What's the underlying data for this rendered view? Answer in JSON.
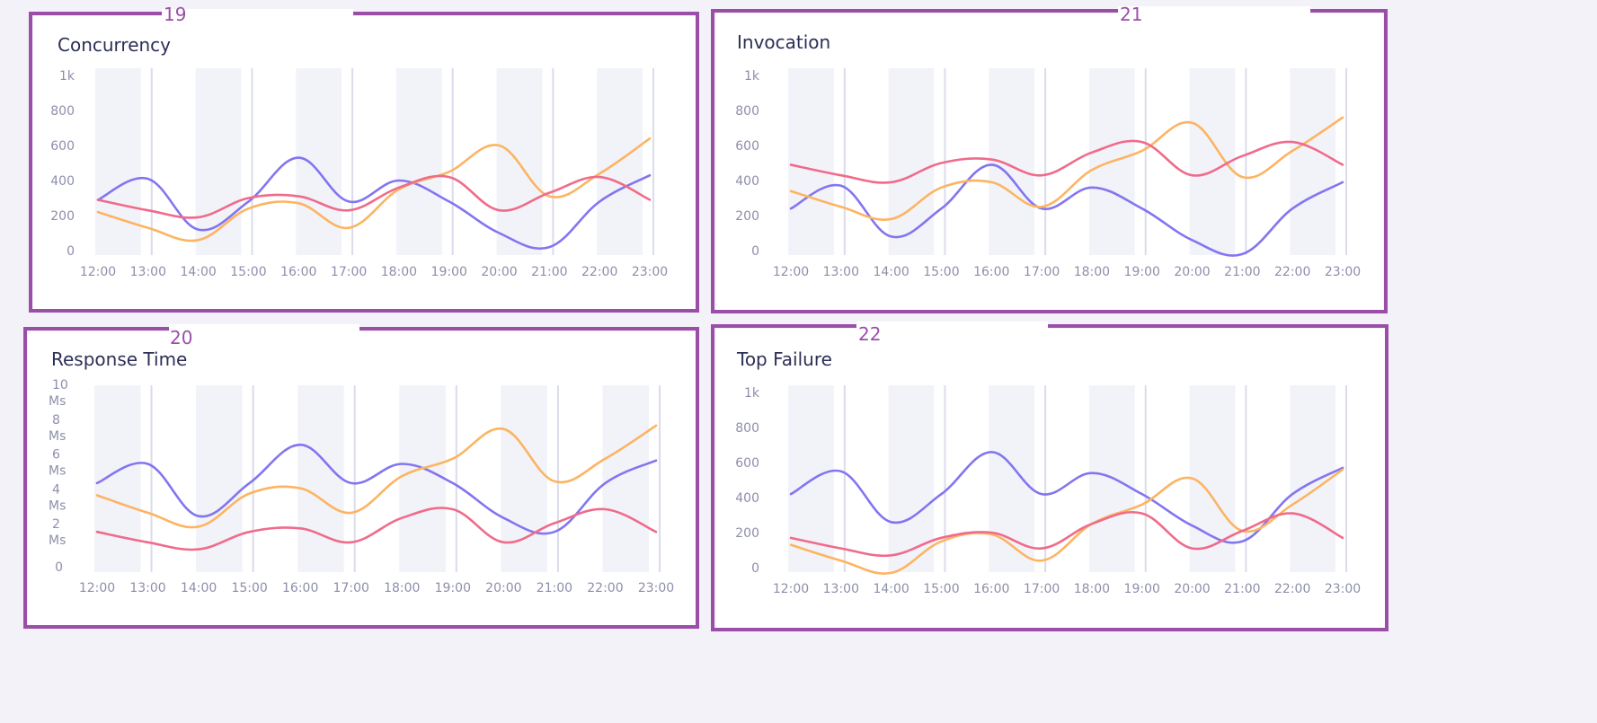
{
  "colors": {
    "purple": "#8375f0",
    "orange": "#fcb462",
    "pink": "#f06b8a",
    "band": "#f2f3f9",
    "frame": "#9b4ea8"
  },
  "x_ticks": [
    "12:00",
    "13:00",
    "14:00",
    "15:00",
    "16:00",
    "17:00",
    "18:00",
    "19:00",
    "20:00",
    "21:00",
    "22:00",
    "23:00"
  ],
  "panels": [
    {
      "id": "concurrency",
      "title": "Concurrency",
      "frame_label": "19",
      "y_ticks": [
        "0",
        "200",
        "400",
        "600",
        "800",
        "1k"
      ]
    },
    {
      "id": "invocation",
      "title": "Invocation",
      "frame_label": "21",
      "y_ticks": [
        "0",
        "200",
        "400",
        "600",
        "800",
        "1k"
      ]
    },
    {
      "id": "response-time",
      "title": "Response Time",
      "frame_label": "20",
      "y_ticks": [
        "0",
        "2\nMs",
        "4\nMs",
        "6\nMs",
        "8\nMs",
        "10\nMs"
      ]
    },
    {
      "id": "top-failure",
      "title": "Top Failure",
      "frame_label": "22",
      "y_ticks": [
        "0",
        "200",
        "400",
        "600",
        "800",
        "1k"
      ]
    }
  ],
  "chart_data": [
    {
      "type": "line",
      "title": "Concurrency",
      "x": [
        "12:00",
        "13:00",
        "14:00",
        "15:00",
        "16:00",
        "17:00",
        "18:00",
        "19:00",
        "20:00",
        "21:00",
        "22:00",
        "23:00"
      ],
      "ylim": [
        0,
        1000
      ],
      "series": [
        {
          "color": "purple",
          "values": [
            290,
            410,
            120,
            280,
            530,
            280,
            400,
            280,
            100,
            20,
            280,
            430
          ]
        },
        {
          "color": "orange",
          "values": [
            220,
            130,
            60,
            240,
            270,
            130,
            350,
            450,
            600,
            310,
            440,
            640
          ]
        },
        {
          "color": "pink",
          "values": [
            290,
            230,
            190,
            300,
            310,
            230,
            360,
            420,
            230,
            330,
            420,
            290
          ]
        }
      ]
    },
    {
      "type": "line",
      "title": "Invocation",
      "x": [
        "12:00",
        "13:00",
        "14:00",
        "15:00",
        "16:00",
        "17:00",
        "18:00",
        "19:00",
        "20:00",
        "21:00",
        "22:00",
        "23:00"
      ],
      "ylim": [
        0,
        1000
      ],
      "series": [
        {
          "color": "purple",
          "values": [
            240,
            370,
            80,
            240,
            490,
            240,
            360,
            240,
            60,
            -20,
            240,
            390
          ]
        },
        {
          "color": "orange",
          "values": [
            340,
            250,
            180,
            360,
            390,
            250,
            460,
            570,
            730,
            420,
            570,
            760
          ]
        },
        {
          "color": "pink",
          "values": [
            490,
            430,
            390,
            500,
            520,
            430,
            560,
            620,
            430,
            540,
            620,
            490
          ]
        }
      ]
    },
    {
      "type": "line",
      "title": "Response Time",
      "x": [
        "12:00",
        "13:00",
        "14:00",
        "15:00",
        "16:00",
        "17:00",
        "18:00",
        "19:00",
        "20:00",
        "21:00",
        "22:00",
        "23:00"
      ],
      "ylim": [
        0,
        10
      ],
      "series": [
        {
          "color": "purple",
          "values": [
            4.8,
            5.9,
            2.9,
            4.8,
            7.0,
            4.8,
            5.9,
            4.8,
            2.8,
            2.0,
            4.8,
            6.1
          ]
        },
        {
          "color": "orange",
          "values": [
            4.1,
            3.1,
            2.3,
            4.2,
            4.5,
            3.1,
            5.2,
            6.2,
            7.9,
            4.9,
            6.2,
            8.1
          ]
        },
        {
          "color": "pink",
          "values": [
            2.0,
            1.4,
            1.0,
            2.0,
            2.2,
            1.4,
            2.8,
            3.3,
            1.4,
            2.5,
            3.3,
            2.0
          ]
        }
      ]
    },
    {
      "type": "line",
      "title": "Top Failure",
      "x": [
        "12:00",
        "13:00",
        "14:00",
        "15:00",
        "16:00",
        "17:00",
        "18:00",
        "19:00",
        "20:00",
        "21:00",
        "22:00",
        "23:00"
      ],
      "ylim": [
        0,
        1000
      ],
      "series": [
        {
          "color": "purple",
          "values": [
            420,
            550,
            260,
            420,
            660,
            420,
            540,
            420,
            240,
            150,
            420,
            570
          ]
        },
        {
          "color": "orange",
          "values": [
            130,
            40,
            -30,
            150,
            190,
            40,
            250,
            360,
            510,
            210,
            360,
            560
          ]
        },
        {
          "color": "pink",
          "values": [
            170,
            110,
            70,
            170,
            200,
            110,
            250,
            310,
            110,
            210,
            310,
            170
          ]
        }
      ]
    }
  ]
}
